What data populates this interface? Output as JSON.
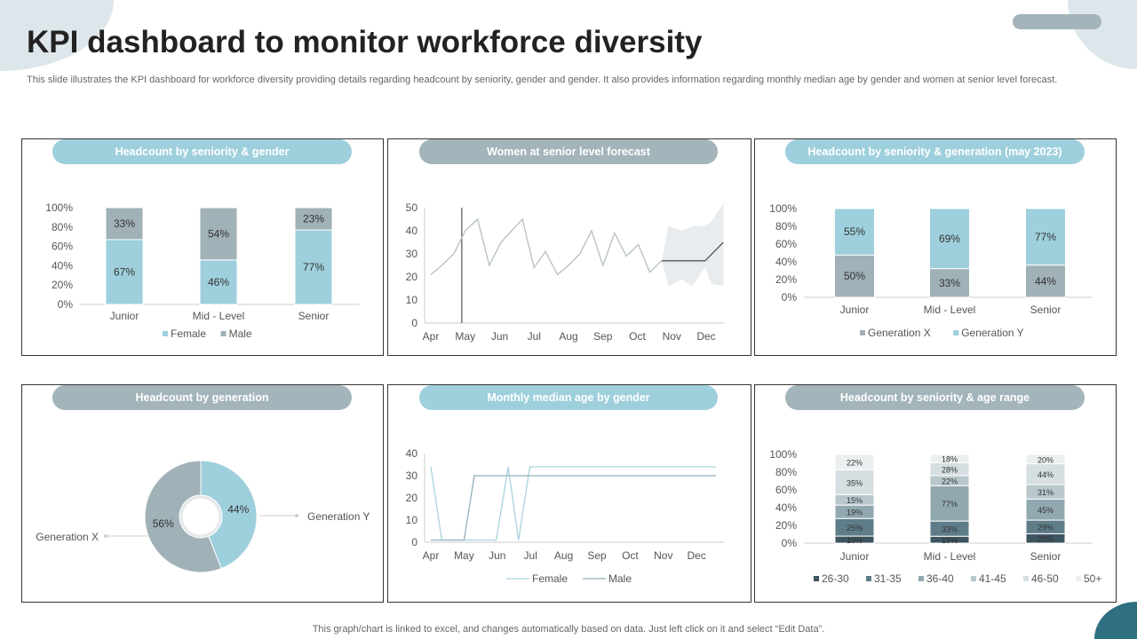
{
  "title": "KPI dashboard to monitor workforce diversity",
  "subtitle": "This slide illustrates the KPI dashboard for workforce diversity providing details regarding headcount by seniority, gender and gender. It also provides information regarding monthly median age by gender and women at senior level forecast.",
  "footer": "This graph/chart is linked to excel,  and changes automatically based on data. Just left click on it and select “Edit Data”.",
  "colors": {
    "light_blue": "#9ecfdc",
    "gray": "#a3b4ba",
    "teal_dark": "#2f6f82",
    "deco": "#dde6ea"
  },
  "panels": {
    "p1": {
      "title": "Headcount by seniority & gender"
    },
    "p2": {
      "title": "Women at senior level forecast"
    },
    "p3": {
      "title": "Headcount by seniority & generation (may 2023)"
    },
    "p4": {
      "title": "Headcount by generation"
    },
    "p5": {
      "title": "Monthly median age by gender"
    },
    "p6": {
      "title": "Headcount by seniority & age range"
    }
  },
  "chart_data": [
    {
      "type": "bar",
      "stacked": "percent",
      "categories": [
        "Junior",
        "Mid - Level",
        "Senior"
      ],
      "yticks": [
        "0%",
        "20%",
        "40%",
        "60%",
        "80%",
        "100%"
      ],
      "ylim": [
        0,
        100
      ],
      "series": [
        {
          "name": "Female",
          "values": [
            67,
            46,
            77
          ],
          "labels": [
            "67%",
            "46%",
            "77%"
          ],
          "color": "#9ecfdc"
        },
        {
          "name": "Male",
          "values": [
            33,
            54,
            23
          ],
          "labels": [
            "33%",
            "54%",
            "23%"
          ],
          "color": "#a0b1b7"
        }
      ],
      "legend": "bottom"
    },
    {
      "type": "line",
      "categories": [
        "Apr",
        "May",
        "Jun",
        "Jul",
        "Aug",
        "Sep",
        "Oct",
        "Nov",
        "Dec"
      ],
      "yticks": [
        "0",
        "10",
        "20",
        "30",
        "40",
        "50"
      ],
      "ylim": [
        0,
        50
      ],
      "series": [
        {
          "x": [
            0,
            0.32,
            0.67,
            1.0,
            1.36,
            1.7,
            2.04,
            2.35,
            2.66,
            3.0,
            3.33,
            3.68,
            4.0,
            4.33,
            4.67,
            5.0,
            5.34,
            5.68,
            6.03,
            6.36,
            6.71
          ],
          "y": [
            21,
            25,
            30,
            40,
            45,
            25,
            35,
            40,
            45,
            24,
            31,
            21,
            25,
            30,
            40,
            25,
            39,
            29,
            34,
            22,
            27
          ],
          "color": "#b5bfc3"
        },
        {
          "x": [
            6.71,
            7.97,
            8.5
          ],
          "y": [
            27,
            27,
            35
          ],
          "color": "#555"
        }
      ],
      "forecast_band": {
        "x": [
          6.71,
          6.9,
          7.3,
          7.6,
          7.97,
          8.15,
          8.5
        ],
        "upper": [
          27,
          42,
          40,
          42,
          42,
          44,
          52
        ],
        "lower": [
          27,
          16,
          19,
          16,
          24,
          17,
          16
        ],
        "color": "#e8ecee"
      },
      "marker_x": 0.9,
      "legend": "none"
    },
    {
      "type": "bar",
      "stacked": "percent",
      "categories": [
        "Junior",
        "Mid - Level",
        "Senior"
      ],
      "yticks": [
        "0%",
        "20%",
        "40%",
        "60%",
        "80%",
        "100%"
      ],
      "ylim": [
        0,
        100
      ],
      "series": [
        {
          "name": "Generation X",
          "values": [
            50,
            33,
            44
          ],
          "labels": [
            "50%",
            "33%",
            "44%"
          ],
          "color": "#a0b1b7"
        },
        {
          "name": "Generation Y",
          "values": [
            55,
            69,
            77
          ],
          "labels": [
            "55%",
            "69%",
            "77%"
          ],
          "color": "#9ecfdc"
        }
      ],
      "legend": "bottom"
    },
    {
      "type": "pie",
      "donut": true,
      "slices": [
        {
          "name": "Generation Y",
          "value": 44,
          "label": "44%",
          "color": "#9ecfdc"
        },
        {
          "name": "Generation X",
          "value": 56,
          "label": "56%",
          "color": "#a0b1b7"
        }
      ]
    },
    {
      "type": "line",
      "categories": [
        "Apr",
        "May",
        "Jun",
        "Jul",
        "Aug",
        "Sep",
        "Oct",
        "Nov",
        "Dec"
      ],
      "yticks": [
        "0",
        "10",
        "20",
        "30",
        "40"
      ],
      "ylim": [
        0,
        40
      ],
      "series": [
        {
          "name": "Female",
          "x": [
            0,
            0.33,
            1.97,
            2.33,
            2.64,
            2.98,
            8.58
          ],
          "y": [
            34,
            1,
            1,
            34,
            1,
            34,
            34
          ],
          "color": "#a9d3dd"
        },
        {
          "name": "Male",
          "x": [
            0,
            1.0,
            1.31,
            8.58
          ],
          "y": [
            1,
            1,
            30,
            30
          ],
          "color": "#8fb0b8"
        }
      ],
      "legend": "bottom"
    },
    {
      "type": "bar",
      "stacked": "percent",
      "categories": [
        "Junior",
        "Mid - Level",
        "Senior"
      ],
      "yticks": [
        "0%",
        "20%",
        "40%",
        "60%",
        "80%",
        "100%"
      ],
      "ylim": [
        0,
        100
      ],
      "series": [
        {
          "name": "26-30",
          "values": [
            10,
            15,
            20
          ],
          "color": "#3d5560"
        },
        {
          "name": "31-35",
          "values": [
            25,
            33,
            29
          ],
          "color": "#5f7d88"
        },
        {
          "name": "36-40",
          "values": [
            19,
            77,
            45
          ],
          "color": "#91a8b0"
        },
        {
          "name": "41-45",
          "values": [
            15,
            22,
            31
          ],
          "color": "#b8c8cd"
        },
        {
          "name": "46-50",
          "values": [
            35,
            28,
            44
          ],
          "color": "#d5dee1"
        },
        {
          "name": "50+",
          "values": [
            22,
            18,
            20
          ],
          "color": "#eceff0"
        }
      ],
      "legend": "bottom"
    }
  ]
}
